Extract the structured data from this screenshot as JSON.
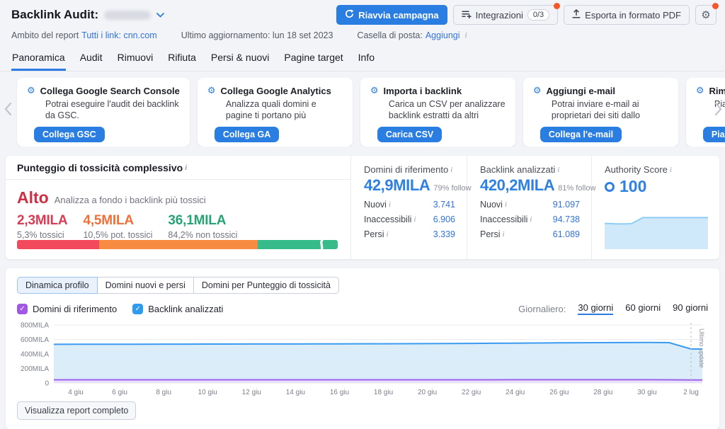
{
  "colors": {
    "primary_blue": "#2a7de1",
    "link_blue": "#3273dc",
    "stat_blue": "#2e81e3",
    "toxic_red": "#f2495c",
    "potentially_toxic_orange": "#f78b41",
    "non_toxic_green": "#38bb8b",
    "alert_dot_orange": "#f4582a",
    "chart_blue": "#3a9bf0",
    "chart_purple": "#9b62ea",
    "active_tab_underline": "#2b7be0"
  },
  "header": {
    "title": "Backlink Audit:",
    "actions": {
      "restart": "Riavvia campagna",
      "integrations": "Integrazioni",
      "integrations_badge": "0/3",
      "export_pdf": "Esporta in formato PDF"
    },
    "meta": {
      "scope_label": "Ambito del report",
      "scope_value": "Tutti i link: cnn.com",
      "last_update": "Ultimo aggiornamento: lun 18 set 2023",
      "mailbox_label": "Casella di posta:",
      "mailbox_action": "Aggiungi"
    }
  },
  "tabs": [
    {
      "label": "Panoramica",
      "active": true
    },
    {
      "label": "Audit"
    },
    {
      "label": "Rimuovi"
    },
    {
      "label": "Rifiuta"
    },
    {
      "label": "Persi & nuovi"
    },
    {
      "label": "Pagine target"
    },
    {
      "label": "Info"
    }
  ],
  "cards": [
    {
      "title": "Collega Google Search Console",
      "desc": "Potrai eseguire l'audit dei backlink da GSC.",
      "button": "Collega GSC"
    },
    {
      "title": "Collega Google Analytics",
      "desc": "Analizza quali domini e pagine ti portano più visitatori.",
      "button": "Collega GA"
    },
    {
      "title": "Importa i backlink",
      "desc": "Carica un CSV per analizzare backlink estratti da altri strumenti.",
      "button": "Carica CSV"
    },
    {
      "title": "Aggiungi e-mail",
      "desc": "Potrai inviare e-mail ai proprietari dei siti dallo strumento.",
      "button": "Collega l'e-mail"
    },
    {
      "title": "Rimani aggiornato",
      "desc": "Pianifica le notifiche",
      "button": "Pianifica"
    }
  ],
  "toxicity": {
    "title": "Punteggio di tossicità complessivo",
    "level": "Alto",
    "level_hint": "Analizza a fondo i backlink più tossici",
    "breakdown": [
      {
        "value": "2,3MILA",
        "label": "5,3% tossici"
      },
      {
        "value": "4,5MILA",
        "label": "10,5% pot. tossici"
      },
      {
        "value": "36,1MILA",
        "label": "84,2% non tossici"
      }
    ],
    "bar_widths_pct": [
      25.5,
      49.5,
      25
    ]
  },
  "stats": [
    {
      "title": "Domini di riferimento",
      "big": "42,9MILA",
      "follow": "79% follow",
      "rows": [
        {
          "label": "Nuovi",
          "value": "3.741"
        },
        {
          "label": "Inaccessibili",
          "value": "6.906"
        },
        {
          "label": "Persi",
          "value": "3.339"
        }
      ]
    },
    {
      "title": "Backlink analizzati",
      "big": "420,2MILA",
      "follow": "81% follow",
      "rows": [
        {
          "label": "Nuovi",
          "value": "91.097"
        },
        {
          "label": "Inaccessibili",
          "value": "94.738"
        },
        {
          "label": "Persi",
          "value": "61.089"
        }
      ]
    }
  ],
  "authority": {
    "title": "Authority Score",
    "score": "100",
    "spark": [
      64,
      64,
      63,
      63,
      63,
      64,
      72,
      80,
      80,
      80,
      80,
      80,
      80,
      80,
      80,
      80,
      80,
      80,
      80,
      80
    ]
  },
  "profile_chart": {
    "tabs": [
      {
        "label": "Dinamica profilo",
        "active": true
      },
      {
        "label": "Domini nuovi e persi"
      },
      {
        "label": "Domini per Punteggio di tossicità"
      }
    ],
    "legend": [
      {
        "label": "Domini di riferimento",
        "color": "#9b62ea",
        "checked": true
      },
      {
        "label": "Backlink analizzati",
        "color": "#3a9bf0",
        "checked": true
      }
    ],
    "period_label": "Giornaliero:",
    "periods": [
      {
        "label": "30 giorni",
        "active": true
      },
      {
        "label": "60 giorni"
      },
      {
        "label": "90 giorni"
      }
    ],
    "footer_button": "Visualizza report completo"
  },
  "chart_data": {
    "type": "area",
    "title": "Dinamica profilo",
    "x_tick_labels": [
      "4 giu",
      "6 giu",
      "8 giu",
      "10 giu",
      "12 giu",
      "14 giu",
      "16 giu",
      "18 giu",
      "20 giu",
      "22 giu",
      "24 giu",
      "26 giu",
      "28 giu",
      "30 giu",
      "2 lug"
    ],
    "x_tick_point_indices": [
      1,
      3,
      5,
      7,
      9,
      11,
      13,
      15,
      17,
      19,
      21,
      23,
      25,
      27,
      29
    ],
    "y_tick_labels": [
      "0",
      "200MILA",
      "400MILA",
      "600MILA",
      "800MILA"
    ],
    "ylim": [
      0,
      800000
    ],
    "grid": true,
    "annotation": {
      "label": "Ultimo update",
      "at_index": 29
    },
    "series": [
      {
        "name": "Backlink analizzati",
        "color": "#3a9bf0",
        "fill": "#d9ecfa",
        "values": [
          533000,
          534000,
          534000,
          535000,
          535000,
          536000,
          536000,
          537000,
          537000,
          538000,
          538000,
          538000,
          539000,
          539000,
          540000,
          540000,
          541000,
          542000,
          543000,
          545000,
          547000,
          549000,
          551000,
          553000,
          555000,
          556000,
          557000,
          558000,
          556000,
          468000
        ]
      },
      {
        "name": "Domini di riferimento",
        "color": "#9b62ea",
        "fill": "#eadef9",
        "values": [
          44000,
          44000,
          44000,
          44000,
          44000,
          44000,
          44000,
          44000,
          44000,
          44000,
          44000,
          44000,
          44000,
          44000,
          44000,
          44000,
          44000,
          44000,
          44000,
          44000,
          44000,
          45000,
          45000,
          45000,
          45000,
          45000,
          45000,
          45000,
          44000,
          41000
        ]
      }
    ]
  }
}
